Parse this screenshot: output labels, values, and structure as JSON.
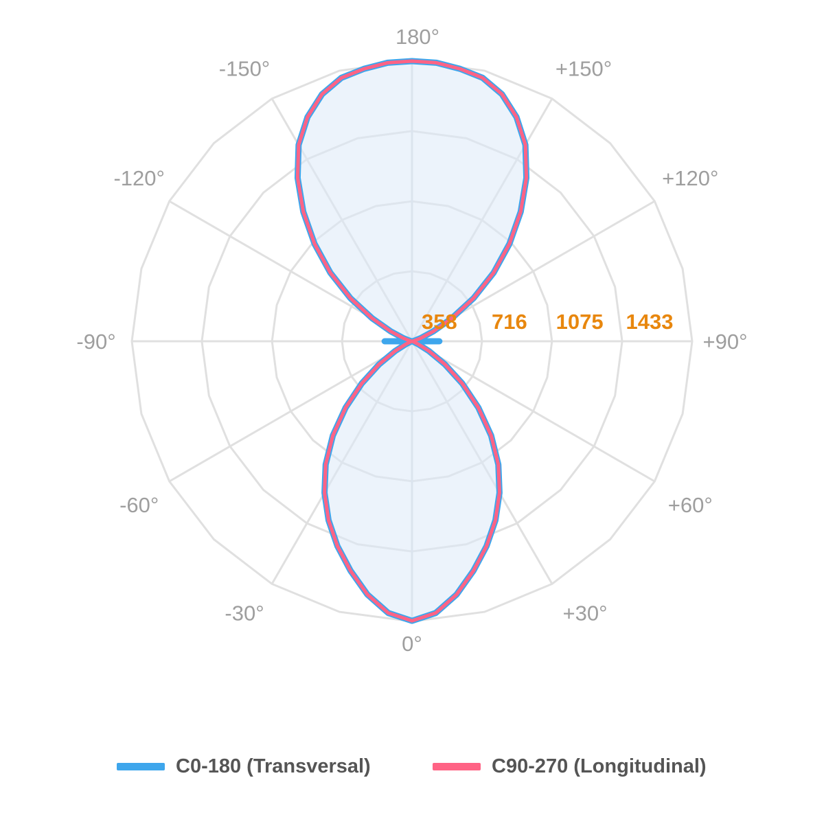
{
  "chart_data": {
    "type": "polar-line",
    "angle_labels": [
      {
        "angle": 180,
        "label": "180°"
      },
      {
        "angle": 150,
        "label": "+150°"
      },
      {
        "angle": 120,
        "label": "+120°"
      },
      {
        "angle": 90,
        "label": "+90°"
      },
      {
        "angle": 60,
        "label": "+60°"
      },
      {
        "angle": 30,
        "label": "+30°"
      },
      {
        "angle": 0,
        "label": "0°"
      },
      {
        "angle": -30,
        "label": "-30°"
      },
      {
        "angle": -60,
        "label": "-60°"
      },
      {
        "angle": -90,
        "label": "-90°"
      },
      {
        "angle": -120,
        "label": "-120°"
      },
      {
        "angle": -150,
        "label": "-150°"
      }
    ],
    "radial_ticks": [
      358,
      716,
      1075,
      1433
    ],
    "radial_tick_labels": [
      "358",
      "716",
      "1075",
      "1433"
    ],
    "rmax": 1433,
    "angle_unit": "degrees",
    "series": [
      {
        "name": "C0-180 (Transversal)",
        "color": "#3ea6ec",
        "angles": [
          0,
          5,
          10,
          15,
          20,
          25,
          30,
          35,
          40,
          45,
          50,
          55,
          60,
          65,
          70,
          75,
          80,
          85,
          90,
          95,
          100,
          105,
          110,
          115,
          120,
          125,
          130,
          135,
          140,
          145,
          150,
          155,
          160,
          165,
          170,
          175,
          180
        ],
        "values": [
          1430,
          1395,
          1315,
          1215,
          1115,
          1010,
          895,
          770,
          630,
          480,
          335,
          205,
          100,
          35,
          10,
          5,
          3,
          2,
          140,
          3,
          5,
          15,
          50,
          120,
          235,
          385,
          545,
          705,
          865,
          1020,
          1160,
          1265,
          1345,
          1395,
          1415,
          1430,
          1433
        ]
      },
      {
        "name": "C90-270 (Longitudinal)",
        "color": "#ff6385",
        "angles": [
          0,
          5,
          10,
          15,
          20,
          25,
          30,
          35,
          40,
          45,
          50,
          55,
          60,
          65,
          70,
          75,
          80,
          85,
          90,
          95,
          100,
          105,
          110,
          115,
          120,
          125,
          130,
          135,
          140,
          145,
          150,
          155,
          160,
          165,
          170,
          175,
          180
        ],
        "values": [
          1430,
          1395,
          1315,
          1215,
          1115,
          1010,
          895,
          770,
          630,
          480,
          335,
          205,
          100,
          35,
          10,
          5,
          3,
          2,
          0,
          2,
          5,
          15,
          50,
          120,
          235,
          385,
          545,
          705,
          865,
          1020,
          1160,
          1265,
          1345,
          1395,
          1415,
          1430,
          1433
        ]
      }
    ]
  },
  "legend": {
    "items": [
      {
        "label": "C0-180 (Transversal)",
        "color": "#3ea6ec"
      },
      {
        "label": "C90-270 (Longitudinal)",
        "color": "#ff6385"
      }
    ]
  }
}
